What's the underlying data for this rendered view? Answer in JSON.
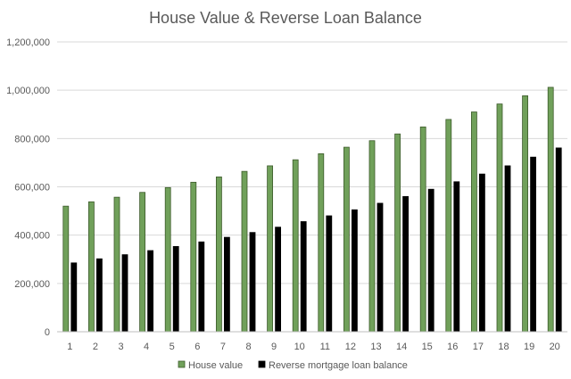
{
  "chart_data": {
    "type": "bar",
    "title": "House Value & Reverse Loan Balance",
    "xlabel": "",
    "ylabel": "",
    "categories": [
      "1",
      "2",
      "3",
      "4",
      "5",
      "6",
      "7",
      "8",
      "9",
      "10",
      "11",
      "12",
      "13",
      "14",
      "15",
      "16",
      "17",
      "18",
      "19",
      "20"
    ],
    "series": [
      {
        "name": "House value",
        "color": "#70a05a",
        "border": "#3c5a2a",
        "values": [
          520000,
          538000,
          557000,
          577000,
          597000,
          619000,
          641000,
          664000,
          687000,
          712000,
          737000,
          764000,
          791000,
          819000,
          848000,
          879000,
          910000,
          943000,
          977000,
          1012000
        ]
      },
      {
        "name": "Reverse mortgage loan balance",
        "color": "#000000",
        "border": "#000000",
        "values": [
          285000,
          302000,
          319000,
          336000,
          353000,
          372000,
          391000,
          411000,
          433000,
          456000,
          480000,
          505000,
          532000,
          560000,
          590000,
          621000,
          653000,
          687000,
          723000,
          761000
        ]
      }
    ],
    "ylim": [
      0,
      1200000
    ],
    "yticks": [
      0,
      200000,
      400000,
      600000,
      800000,
      1000000,
      1200000
    ],
    "ytick_labels": [
      "0",
      "200,000",
      "400,000",
      "600,000",
      "800,000",
      "1,000,000",
      "1,200,000"
    ],
    "grid": true,
    "legend": "bottom-center",
    "colors": {
      "grid": "#d9d9d9",
      "axis": "#bfbfbf",
      "text": "#595959"
    }
  }
}
